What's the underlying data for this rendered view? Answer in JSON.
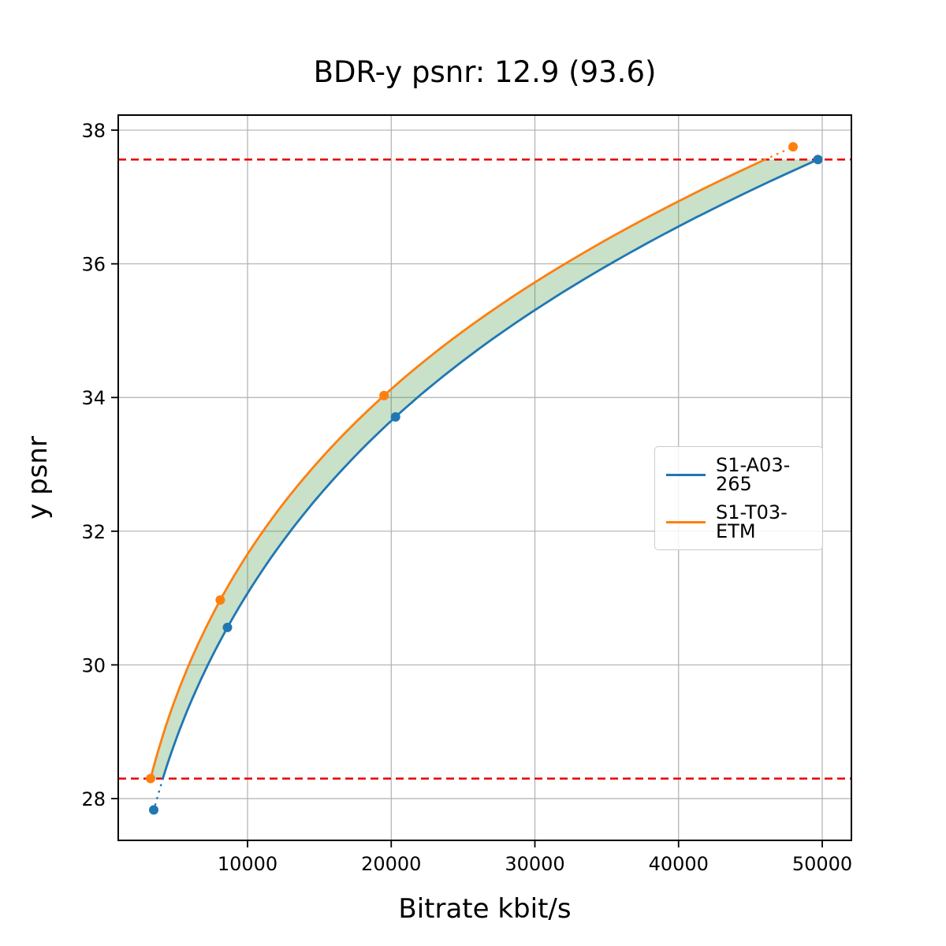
{
  "chart_data": {
    "type": "line",
    "title": "BDR-y psnr: 12.9 (93.6)",
    "xlabel": "Bitrate kbit/s",
    "ylabel": "y psnr",
    "xlim": [
      1000,
      52030
    ],
    "ylim": [
      27.375,
      38.225
    ],
    "x_ticks": [
      10000,
      20000,
      30000,
      40000,
      50000
    ],
    "y_ticks": [
      28,
      30,
      32,
      34,
      36,
      38
    ],
    "grid": true,
    "grid_color": "#b0b0b0",
    "legend_position": "center right",
    "series": [
      {
        "name": "S1-A03-265",
        "color": "#1f77b4",
        "points": [
          [
            3470,
            27.83
          ],
          [
            8600,
            30.56
          ],
          [
            20300,
            33.71
          ],
          [
            49700,
            37.56
          ]
        ]
      },
      {
        "name": "S1-T03-ETM",
        "color": "#ff7f0e",
        "points": [
          [
            3250,
            28.3
          ],
          [
            8100,
            30.97
          ],
          [
            19500,
            34.03
          ],
          [
            47970,
            37.75
          ]
        ]
      }
    ],
    "overlap_lines": {
      "low": 28.3,
      "high": 37.56,
      "color": "#e60000"
    },
    "fill_between": {
      "color": "#3c913c",
      "opacity": 0.28
    }
  }
}
